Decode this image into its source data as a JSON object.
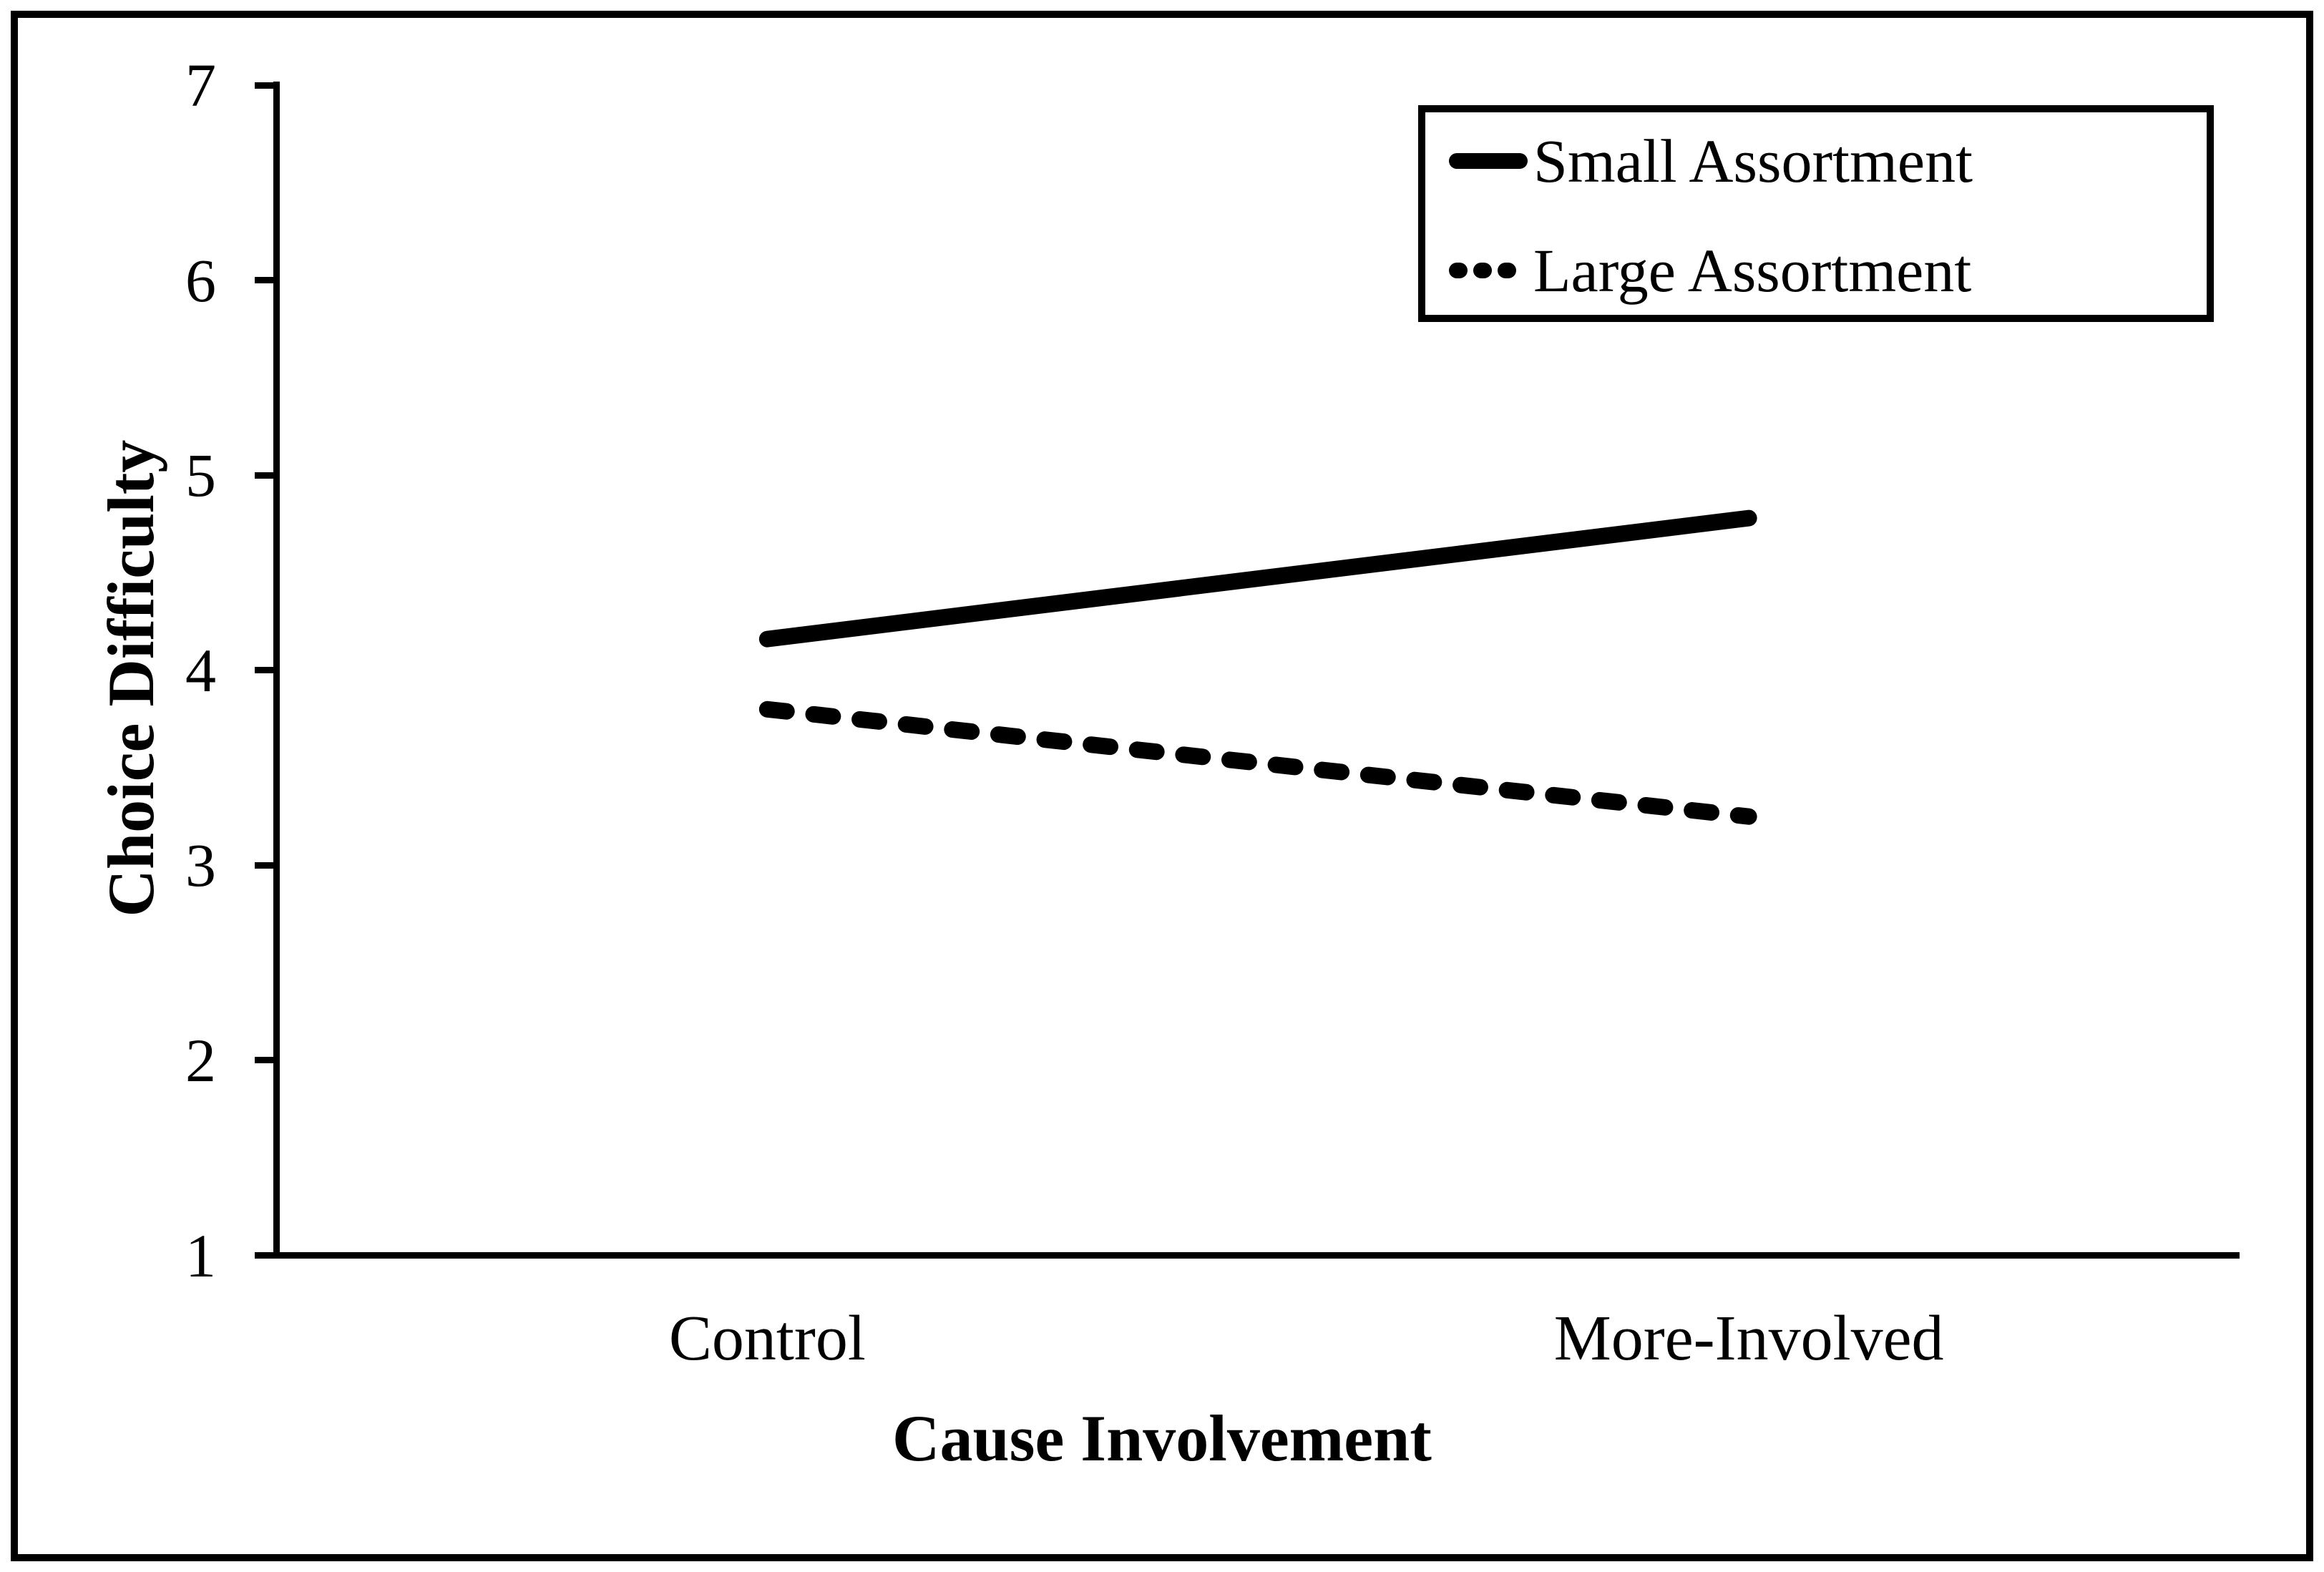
{
  "figure": {
    "background": "#ffffff",
    "ink_color": "#000000"
  },
  "chart_data": {
    "type": "line",
    "title": "",
    "categories": [
      "Control",
      "More-Involved"
    ],
    "series": [
      {
        "name": "Small Assortment",
        "line_style": "solid",
        "values": [
          4.16,
          4.78
        ]
      },
      {
        "name": "Large Assortment",
        "line_style": "dashed",
        "values": [
          3.8,
          3.25
        ]
      }
    ],
    "xlabel": "Cause Involvement",
    "ylabel": "Choice Difficulty",
    "ylim": [
      1,
      7
    ],
    "yticks": [
      7,
      6,
      5,
      4,
      3,
      2,
      1
    ],
    "grid": false,
    "legend_position": "top-right"
  }
}
